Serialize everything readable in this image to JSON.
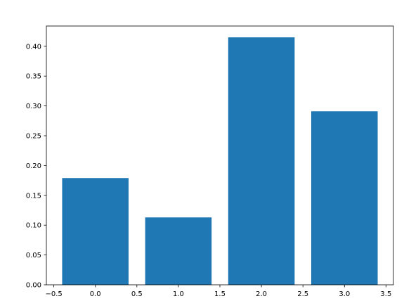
{
  "chart_data": {
    "type": "bar",
    "x": [
      0,
      1,
      2,
      3
    ],
    "values": [
      0.179,
      0.113,
      0.415,
      0.291
    ],
    "color": "#1f77b4",
    "xlim": [
      -0.59,
      3.59
    ],
    "xticks": [
      {
        "value": -0.5,
        "label": "−0.5"
      },
      {
        "value": 0,
        "label": "0.0"
      },
      {
        "value": 0.5,
        "label": "0.5"
      },
      {
        "value": 1,
        "label": "1.0"
      },
      {
        "value": 1.5,
        "label": "1.5"
      },
      {
        "value": 2,
        "label": "2.0"
      },
      {
        "value": 2.5,
        "label": "2.5"
      },
      {
        "value": 3,
        "label": "3.0"
      },
      {
        "value": 3.5,
        "label": "3.5"
      }
    ],
    "ylim": [
      0,
      0.434
    ],
    "yticks": [
      {
        "value": 0,
        "label": "0.00"
      },
      {
        "value": 0.05,
        "label": "0.05"
      },
      {
        "value": 0.1,
        "label": "0.10"
      },
      {
        "value": 0.15,
        "label": "0.15"
      },
      {
        "value": 0.2,
        "label": "0.20"
      },
      {
        "value": 0.25,
        "label": "0.25"
      },
      {
        "value": 0.3,
        "label": "0.30"
      },
      {
        "value": 0.35,
        "label": "0.35"
      },
      {
        "value": 0.4,
        "label": "0.40"
      }
    ],
    "grid": false
  }
}
